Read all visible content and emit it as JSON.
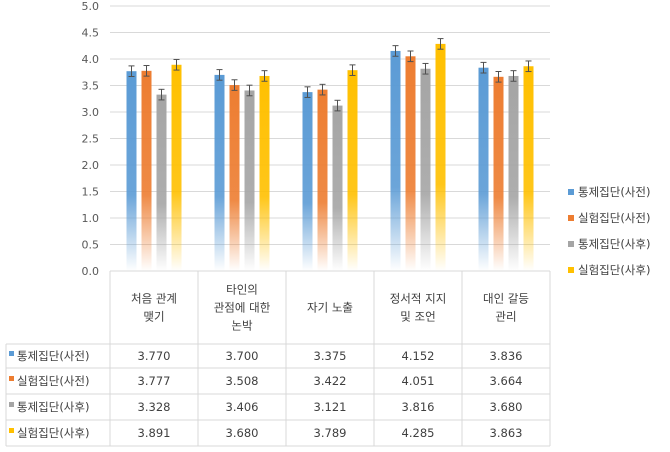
{
  "chart_data": {
    "type": "bar",
    "categories": [
      [
        "처음 관계",
        "맺기"
      ],
      [
        "타인의",
        "관점에 대한",
        "논박"
      ],
      [
        "자기 노출"
      ],
      [
        "정서적 지지",
        "및 조언"
      ],
      [
        "대인 갈등",
        "관리"
      ]
    ],
    "series": [
      {
        "name": "통제집단(사전)",
        "color": "#5b9bd5",
        "values": [
          3.77,
          3.7,
          3.375,
          4.152,
          3.836
        ],
        "labels": [
          "3.770",
          "3.700",
          "3.375",
          "4.152",
          "3.836"
        ]
      },
      {
        "name": "실험집단(사전)",
        "color": "#ed7d31",
        "values": [
          3.777,
          3.508,
          3.422,
          4.051,
          3.664
        ],
        "labels": [
          "3.777",
          "3.508",
          "3.422",
          "4.051",
          "3.664"
        ]
      },
      {
        "name": "통제집단(사후)",
        "color": "#a5a5a5",
        "values": [
          3.328,
          3.406,
          3.121,
          3.816,
          3.68
        ],
        "labels": [
          "3.328",
          "3.406",
          "3.121",
          "3.816",
          "3.680"
        ]
      },
      {
        "name": "실험집단(사후)",
        "color": "#ffc000",
        "values": [
          3.891,
          3.68,
          3.789,
          4.285,
          3.863
        ],
        "labels": [
          "3.891",
          "3.680",
          "3.789",
          "4.285",
          "3.863"
        ]
      }
    ],
    "error": 0.1,
    "ylim": [
      0,
      5
    ],
    "yticks": [
      "0.0",
      "0.5",
      "1.0",
      "1.5",
      "2.0",
      "2.5",
      "3.0",
      "3.5",
      "4.0",
      "4.5",
      "5.0"
    ],
    "grid": true,
    "legend_position": "right",
    "has_data_table": true
  }
}
